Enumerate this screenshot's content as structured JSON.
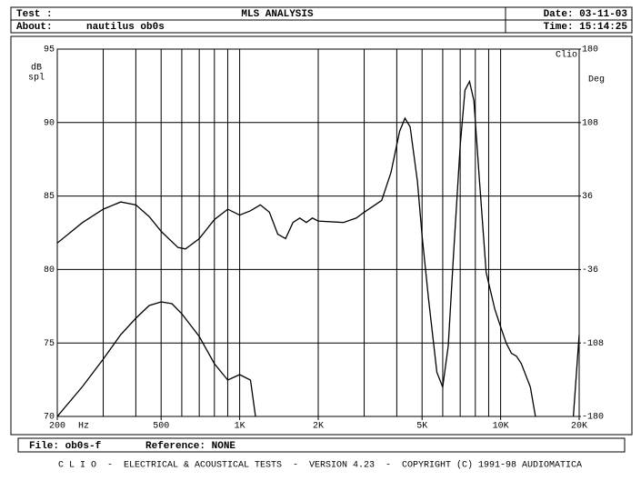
{
  "header": {
    "test_label": "Test :",
    "title": "MLS ANALYSIS",
    "date": "Date: 03-11-03",
    "about_label": "About:",
    "about": "nautilus ob0s",
    "time": "Time: 15:14:25"
  },
  "footer": {
    "file": "File: ob0s-f",
    "reference": "Reference: NONE",
    "banner": "C L I O  -  ELECTRICAL & ACOUSTICAL TESTS  -  VERSION 4.23  -  COPYRIGHT (C) 1991-98 AUDIOMATICA"
  },
  "chart_data": {
    "type": "line",
    "xscale": "log",
    "grid": true,
    "logo": "Clio",
    "xlabel": "Hz",
    "ylabel": [
      "dB",
      "spl"
    ],
    "y2label": "Deg",
    "xlim": [
      200,
      20000
    ],
    "xticks": [
      200,
      500,
      {
        "value": 1000,
        "label": "1K"
      },
      {
        "value": 2000,
        "label": "2K"
      },
      {
        "value": 5000,
        "label": "5K"
      },
      {
        "value": 10000,
        "label": "10K"
      },
      {
        "value": 20000,
        "label": "20K"
      }
    ],
    "ylim": [
      70,
      95
    ],
    "yticks": [
      70,
      75,
      80,
      85,
      90,
      95
    ],
    "y2lim": [
      -180,
      180
    ],
    "y2ticks": [
      -180,
      -108,
      -36,
      36,
      108,
      180
    ],
    "series": [
      {
        "name": "magnitude",
        "color": "#000000",
        "x": [
          200,
          250,
          300,
          350,
          400,
          450,
          500,
          580,
          620,
          700,
          800,
          900,
          1000,
          1100,
          1200,
          1300,
          1400,
          1500,
          1600,
          1700,
          1800,
          1900,
          2000,
          2500,
          2800,
          3000,
          3500,
          3800,
          4100,
          4300,
          4500,
          4800,
          5000,
          5300,
          5700,
          6000,
          6300,
          6600,
          7000,
          7300,
          7600,
          7900,
          8300,
          8800,
          9500,
          10000,
          10500,
          11000,
          11500,
          12000,
          13000,
          13600
        ],
        "values": [
          81.8,
          83.2,
          84.1,
          84.6,
          84.4,
          83.6,
          82.6,
          81.5,
          81.4,
          82.1,
          83.4,
          84.1,
          83.7,
          84.0,
          84.4,
          83.9,
          82.4,
          82.1,
          83.2,
          83.5,
          83.2,
          83.5,
          83.3,
          83.2,
          83.5,
          83.9,
          84.7,
          86.6,
          89.4,
          90.3,
          89.7,
          86.0,
          82.3,
          77.9,
          73.0,
          72.0,
          74.8,
          81.0,
          88.4,
          92.2,
          92.8,
          91.5,
          86.0,
          79.8,
          77.3,
          76.1,
          75.0,
          74.3,
          74.1,
          73.6,
          72.0,
          70.0
        ]
      },
      {
        "name": "phase",
        "color": "#000000",
        "axis": "y2",
        "x": [
          200,
          250,
          300,
          350,
          400,
          450,
          500,
          550,
          600,
          700,
          800,
          900,
          1000,
          1100,
          1150,
          5000,
          19000,
          20000
        ],
        "values": [
          -180,
          -150.6,
          -123.9,
          -99.8,
          -83.8,
          -71.3,
          -67.7,
          -69.5,
          -79.3,
          -101.6,
          -128.3,
          -144.4,
          -139.0,
          -144.4,
          -180,
          null,
          -180,
          -99.8
        ]
      }
    ]
  }
}
